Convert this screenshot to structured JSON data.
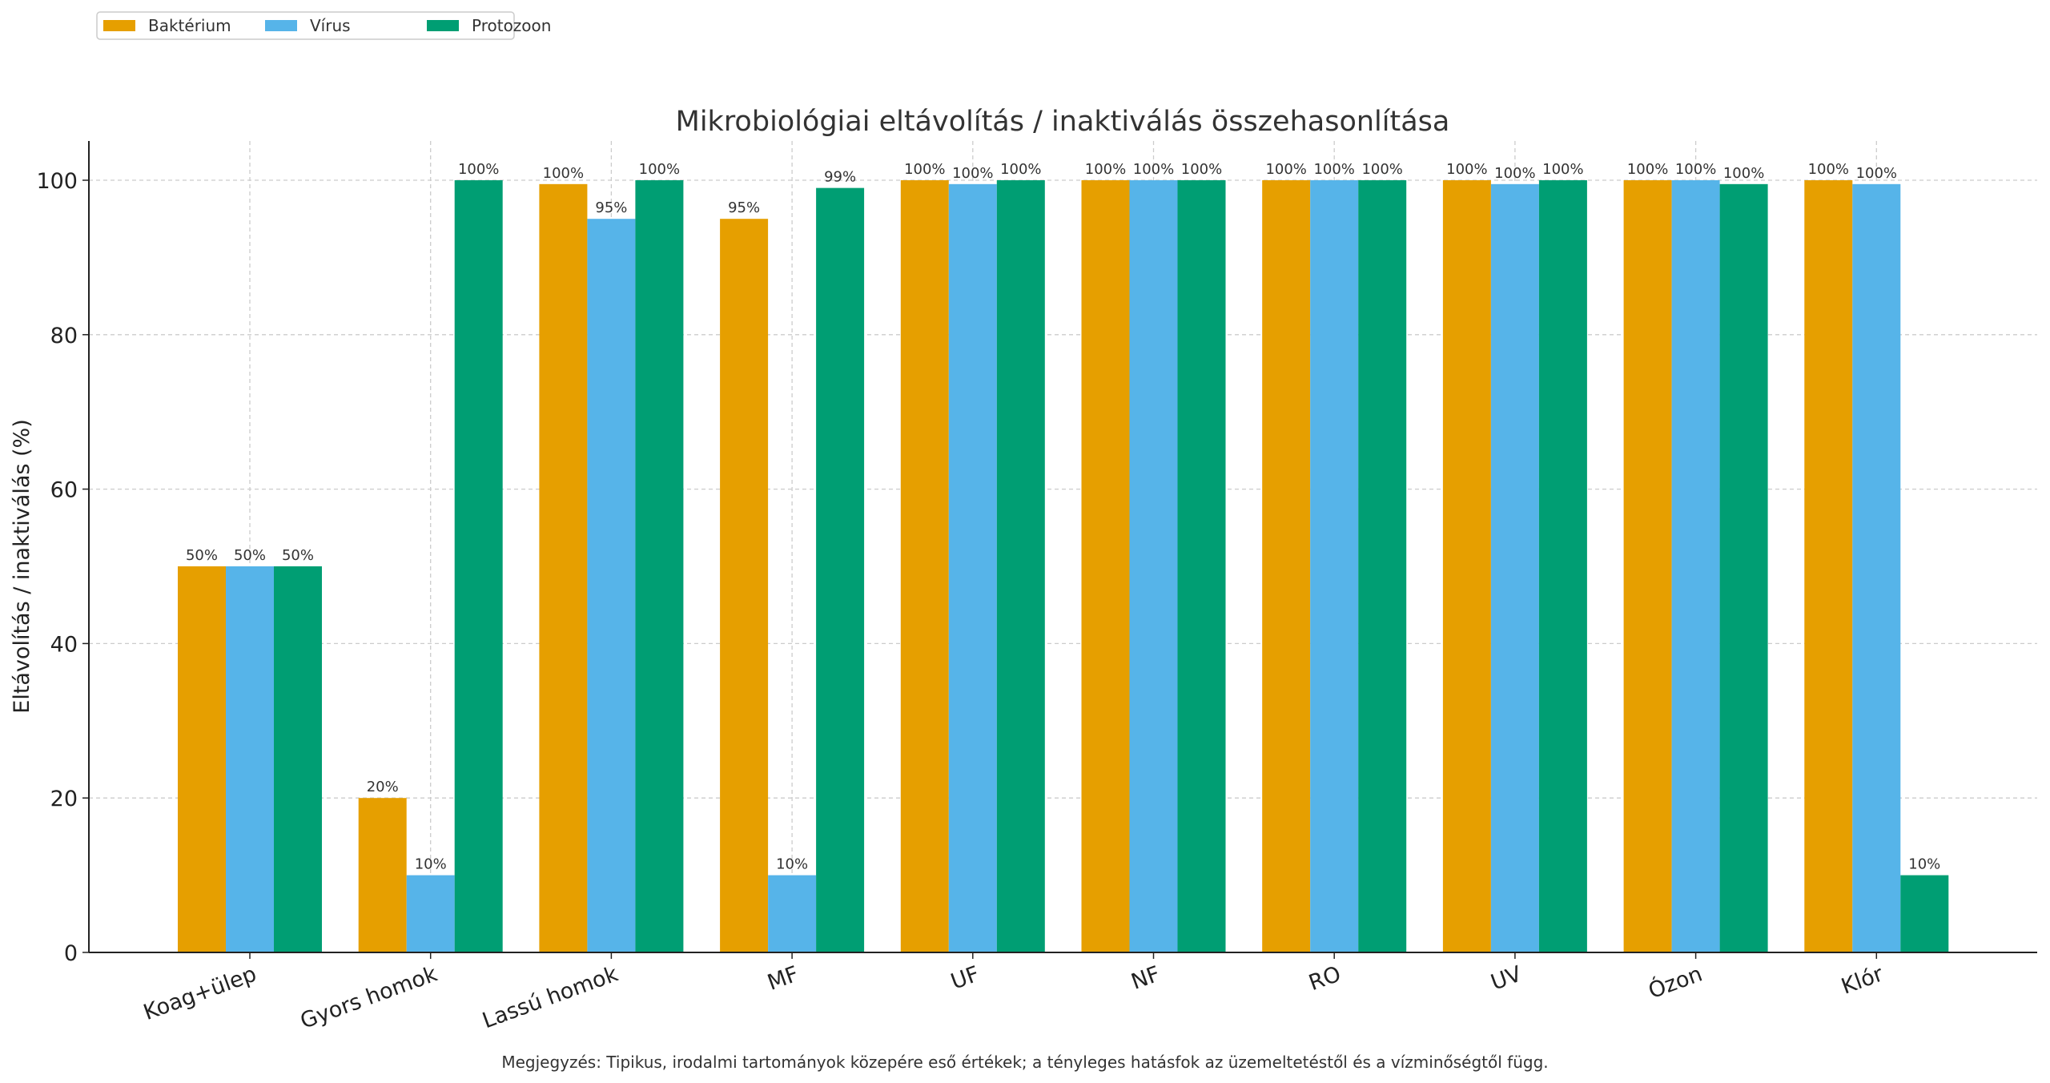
{
  "chart_data": {
    "type": "bar",
    "title": "Mikrobiológiai eltávolítás / inaktiválás összehasonlítása",
    "xlabel": "",
    "ylabel": "Eltávolítás / inaktiválás (%)",
    "ylim": [
      0,
      105
    ],
    "yticks": [
      0,
      20,
      40,
      60,
      80,
      100
    ],
    "grid": true,
    "legend_position": "top-left",
    "categories": [
      "Koag+ülep",
      "Gyors homok",
      "Lassú homok",
      "MF",
      "UF",
      "NF",
      "RO",
      "UV",
      "Ózon",
      "Klór"
    ],
    "series": [
      {
        "name": "Baktérium",
        "color": "#E69F00",
        "values": [
          50,
          20,
          99.5,
          95,
          100,
          100,
          100,
          100,
          100,
          100
        ]
      },
      {
        "name": "Vírus",
        "color": "#56B4E9",
        "values": [
          50,
          10,
          95,
          10,
          99.5,
          100,
          100,
          99.5,
          100,
          99.5
        ]
      },
      {
        "name": "Protozoon",
        "color": "#009E73",
        "values": [
          50,
          100,
          100,
          99,
          100,
          100,
          100,
          100,
          99.5,
          10
        ]
      }
    ],
    "label_format": "{rounded}%",
    "note": "Megjegyzés: Tipikus, irodalmi tartományok közepére eső értékek; a tényleges hatásfok az üzemeltetéstől és a vízminőségtől függ."
  }
}
